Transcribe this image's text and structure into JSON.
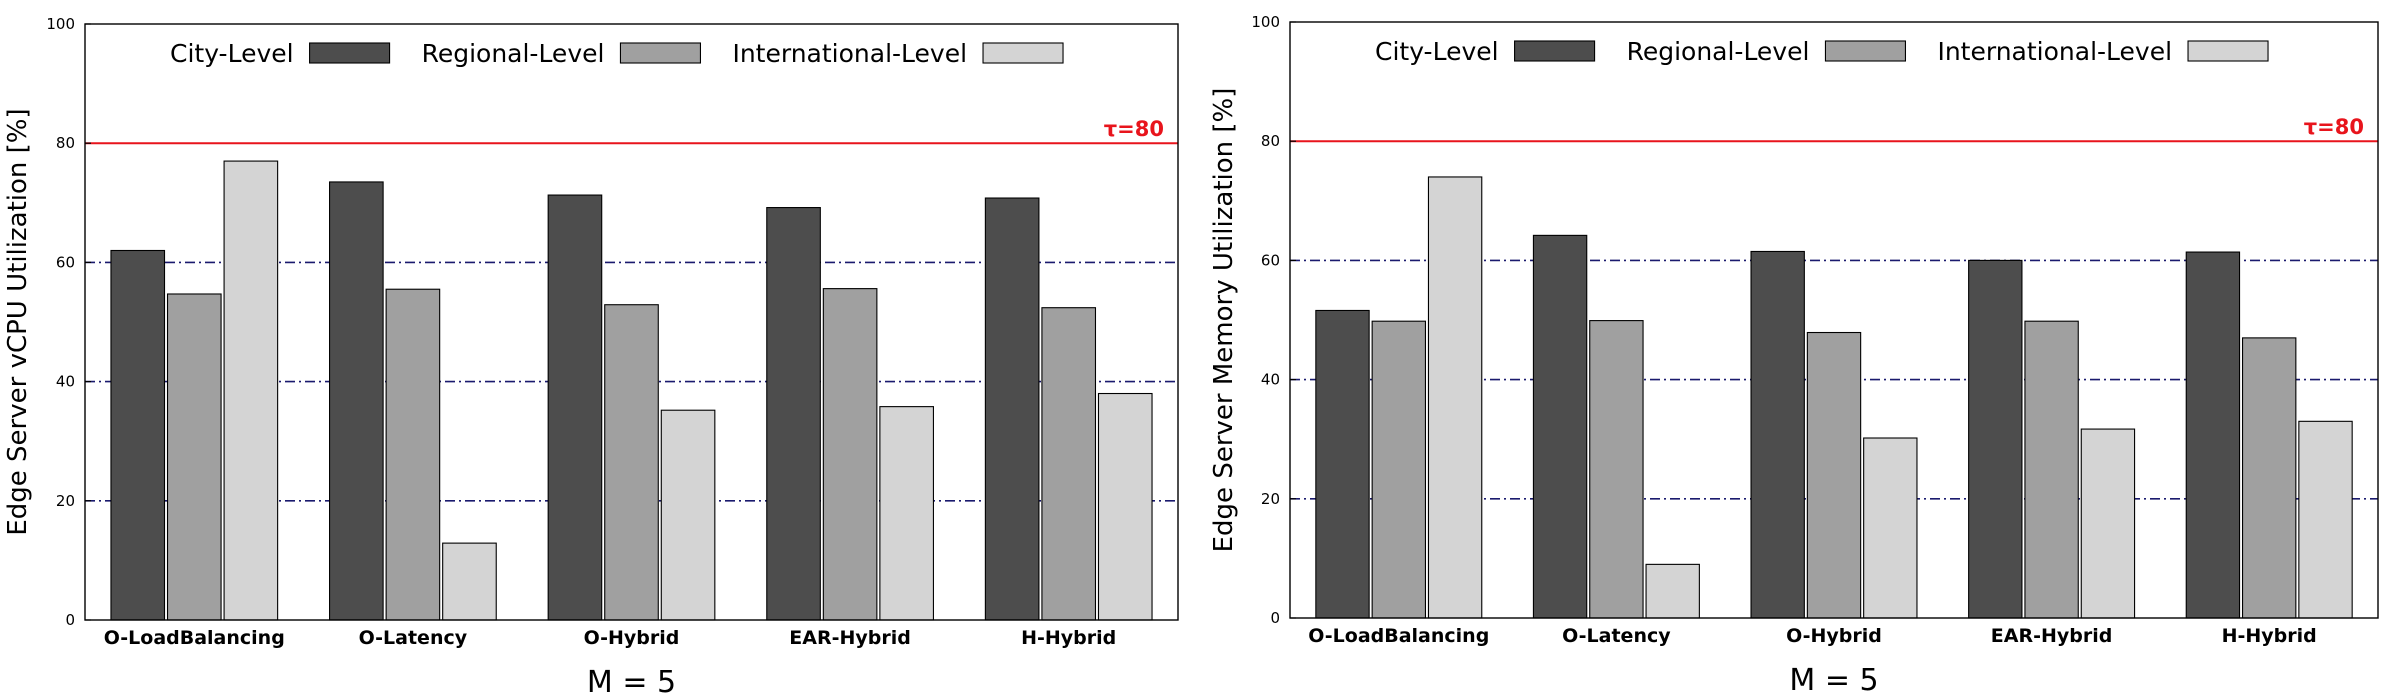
{
  "legend": [
    "City-Level",
    "Regional-Level",
    "International-Level"
  ],
  "series_colors": [
    "#4d4d4d",
    "#a0a0a0",
    "#d4d4d4"
  ],
  "threshold_color": "#e8141c",
  "grid_color": "#1a1a6e",
  "chart_data": [
    {
      "type": "bar",
      "categories": [
        "O-LoadBalancing",
        "O-Latency",
        "O-Hybrid",
        "EAR-Hybrid",
        "H-Hybrid"
      ],
      "series": [
        {
          "name": "City-Level",
          "values": [
            62,
            73.5,
            71.3,
            69.2,
            70.8
          ]
        },
        {
          "name": "Regional-Level",
          "values": [
            54.7,
            55.5,
            52.9,
            55.6,
            52.4
          ]
        },
        {
          "name": "International-Level",
          "values": [
            77,
            12.9,
            35.2,
            35.8,
            38
          ]
        }
      ],
      "xlabel": "M = 5",
      "ylabel": "Edge Server vCPU Utilization [%]",
      "ylim": [
        0,
        100
      ],
      "yticks": [
        "0",
        "20",
        "40",
        "60",
        "80",
        "100"
      ],
      "grid_lines": [
        20,
        40,
        60
      ],
      "threshold": {
        "value": 80,
        "label": "τ=80"
      },
      "legend_position": "top"
    },
    {
      "type": "bar",
      "categories": [
        "O-LoadBalancing",
        "O-Latency",
        "O-Hybrid",
        "EAR-Hybrid",
        "H-Hybrid"
      ],
      "series": [
        {
          "name": "City-Level",
          "values": [
            51.6,
            64.2,
            61.5,
            60,
            61.4
          ]
        },
        {
          "name": "Regional-Level",
          "values": [
            49.8,
            49.9,
            47.9,
            49.8,
            47
          ]
        },
        {
          "name": "International-Level",
          "values": [
            74,
            9,
            30.2,
            31.7,
            33
          ]
        }
      ],
      "xlabel": "M = 5",
      "ylabel": "Edge Server Memory Utilization [%]",
      "ylim": [
        0,
        100
      ],
      "yticks": [
        "0",
        "20",
        "40",
        "60",
        "80",
        "100"
      ],
      "grid_lines": [
        20,
        40,
        60
      ],
      "threshold": {
        "value": 80,
        "label": "τ=80"
      },
      "legend_position": "top"
    }
  ]
}
